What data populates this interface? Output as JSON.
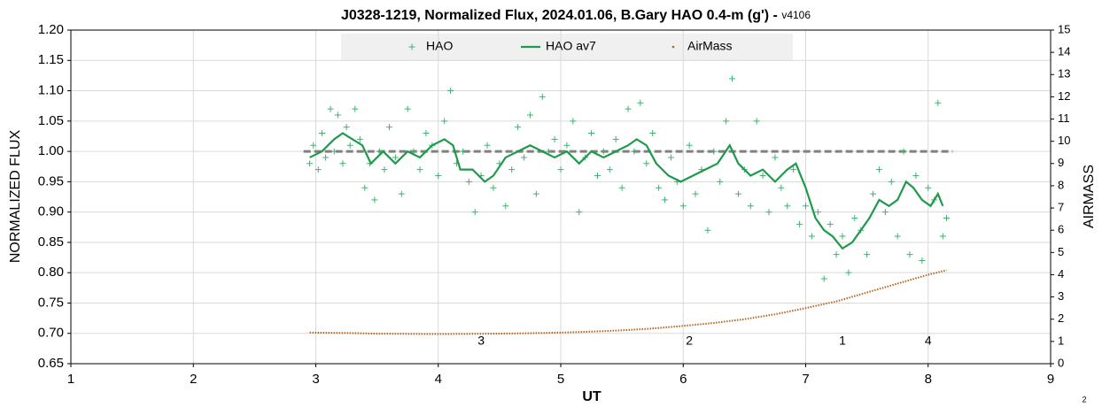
{
  "chart_data": {
    "type": "scatter",
    "title": "J0328-1219, Normalized Flux, 2024.01.06, B.Gary HAO 0.4-m (g') - ",
    "title_suffix": "v4106",
    "xlabel": "UT",
    "ylabel": "NORMALIZED FLUX",
    "y2label": "AIRMASS",
    "footnote": "2",
    "xlim": [
      1,
      9
    ],
    "xticks": [
      1,
      2,
      3,
      4,
      5,
      6,
      7,
      8,
      9
    ],
    "ylim": [
      0.65,
      1.2
    ],
    "yticks": [
      {
        "value": 0.65,
        "label": "0.65"
      },
      {
        "value": 0.7,
        "label": "0.70"
      },
      {
        "value": 0.75,
        "label": "0.75"
      },
      {
        "value": 0.8,
        "label": "0.80"
      },
      {
        "value": 0.85,
        "label": "0.85"
      },
      {
        "value": 0.9,
        "label": "0.90"
      },
      {
        "value": 0.95,
        "label": "0.95"
      },
      {
        "value": 1.0,
        "label": "1.00"
      },
      {
        "value": 1.05,
        "label": "1.05"
      },
      {
        "value": 1.1,
        "label": "1.10"
      },
      {
        "value": 1.15,
        "label": "1.15"
      },
      {
        "value": 1.2,
        "label": "1.20"
      }
    ],
    "y2lim": [
      0,
      15
    ],
    "y2ticks": [
      0,
      1,
      2,
      3,
      4,
      5,
      6,
      7,
      8,
      9,
      10,
      11,
      12,
      13,
      14,
      15
    ],
    "grid": true,
    "legend": "top",
    "reference": {
      "y": 1.0,
      "x": [
        2.9,
        8.2
      ],
      "color": "#808080"
    },
    "annotations": [
      "3",
      "2",
      "1",
      "4"
    ],
    "series": [
      {
        "name": "HAO",
        "color": "#3cb371",
        "marker": "plus",
        "x": [
          2.95,
          2.98,
          3.02,
          3.05,
          3.08,
          3.12,
          3.15,
          3.18,
          3.22,
          3.25,
          3.28,
          3.32,
          3.36,
          3.4,
          3.44,
          3.48,
          3.52,
          3.56,
          3.6,
          3.65,
          3.7,
          3.75,
          3.8,
          3.85,
          3.9,
          3.95,
          4.0,
          4.05,
          4.1,
          4.15,
          4.2,
          4.25,
          4.3,
          4.35,
          4.4,
          4.45,
          4.5,
          4.55,
          4.6,
          4.65,
          4.7,
          4.75,
          4.8,
          4.85,
          4.9,
          4.95,
          5.0,
          5.05,
          5.1,
          5.15,
          5.2,
          5.25,
          5.3,
          5.35,
          5.4,
          5.45,
          5.5,
          5.55,
          5.6,
          5.65,
          5.7,
          5.75,
          5.8,
          5.85,
          5.9,
          5.95,
          6.0,
          6.05,
          6.1,
          6.15,
          6.2,
          6.25,
          6.3,
          6.35,
          6.4,
          6.45,
          6.5,
          6.55,
          6.6,
          6.65,
          6.7,
          6.75,
          6.8,
          6.85,
          6.9,
          6.95,
          7.0,
          7.05,
          7.1,
          7.15,
          7.2,
          7.25,
          7.3,
          7.35,
          7.4,
          7.45,
          7.5,
          7.55,
          7.6,
          7.65,
          7.7,
          7.75,
          7.8,
          7.85,
          7.9,
          7.95,
          8.0,
          8.05,
          8.08,
          8.12,
          8.15
        ],
        "values": [
          0.98,
          1.01,
          0.97,
          1.03,
          0.99,
          1.07,
          1.0,
          1.06,
          0.98,
          1.04,
          1.01,
          1.07,
          1.02,
          0.94,
          0.98,
          0.92,
          1.0,
          0.97,
          1.04,
          0.99,
          0.93,
          1.07,
          1.0,
          0.97,
          1.03,
          1.01,
          0.96,
          1.05,
          1.1,
          0.98,
          1.0,
          0.95,
          0.9,
          0.96,
          1.01,
          0.94,
          0.98,
          0.91,
          0.97,
          1.04,
          0.99,
          1.06,
          0.93,
          1.09,
          1.0,
          1.02,
          0.97,
          1.01,
          1.05,
          0.9,
          0.99,
          1.03,
          0.96,
          1.0,
          0.97,
          1.02,
          0.94,
          1.07,
          1.0,
          1.08,
          0.98,
          1.03,
          0.94,
          0.92,
          0.99,
          0.95,
          0.91,
          1.01,
          0.93,
          0.97,
          0.87,
          1.0,
          0.95,
          1.05,
          1.12,
          0.93,
          0.97,
          0.91,
          1.05,
          0.96,
          0.9,
          0.99,
          0.94,
          0.91,
          0.97,
          0.88,
          0.91,
          0.86,
          0.9,
          0.79,
          0.88,
          0.83,
          0.86,
          0.8,
          0.89,
          0.87,
          0.83,
          0.93,
          0.97,
          0.9,
          0.95,
          0.86,
          1.0,
          0.83,
          0.96,
          0.82,
          0.94,
          0.92,
          1.08,
          0.86,
          0.89
        ]
      },
      {
        "name": "HAO av7",
        "color": "#1e9a4b",
        "marker": "line",
        "x": [
          2.95,
          3.05,
          3.15,
          3.22,
          3.3,
          3.38,
          3.45,
          3.55,
          3.65,
          3.75,
          3.85,
          3.95,
          4.05,
          4.12,
          4.18,
          4.28,
          4.38,
          4.45,
          4.55,
          4.65,
          4.75,
          4.85,
          4.95,
          5.05,
          5.15,
          5.25,
          5.35,
          5.45,
          5.55,
          5.62,
          5.7,
          5.78,
          5.88,
          5.98,
          6.08,
          6.18,
          6.28,
          6.38,
          6.45,
          6.55,
          6.65,
          6.75,
          6.85,
          6.92,
          7.0,
          7.08,
          7.15,
          7.22,
          7.3,
          7.38,
          7.45,
          7.52,
          7.6,
          7.68,
          7.75,
          7.82,
          7.88,
          7.95,
          8.02,
          8.08,
          8.12
        ],
        "values": [
          0.99,
          1.0,
          1.02,
          1.03,
          1.02,
          1.01,
          0.98,
          1.0,
          0.98,
          1.0,
          0.99,
          1.01,
          1.02,
          1.01,
          0.97,
          0.97,
          0.95,
          0.96,
          0.99,
          1.0,
          1.01,
          1.0,
          0.99,
          1.0,
          0.98,
          1.0,
          0.99,
          1.0,
          1.01,
          1.02,
          1.01,
          0.98,
          0.96,
          0.95,
          0.96,
          0.97,
          0.98,
          1.01,
          0.98,
          0.96,
          0.97,
          0.95,
          0.97,
          0.98,
          0.94,
          0.89,
          0.87,
          0.86,
          0.84,
          0.85,
          0.87,
          0.89,
          0.92,
          0.91,
          0.92,
          0.95,
          0.94,
          0.92,
          0.91,
          0.93,
          0.91
        ]
      },
      {
        "name": "AirMass",
        "color": "#b5651d",
        "marker": "dot",
        "axis": "y2",
        "x": [
          2.95,
          3.25,
          3.5,
          3.75,
          4.0,
          4.25,
          4.5,
          4.75,
          5.0,
          5.25,
          5.5,
          5.75,
          6.0,
          6.25,
          6.5,
          6.75,
          7.0,
          7.25,
          7.5,
          7.75,
          8.0,
          8.15
        ],
        "values": [
          1.4,
          1.38,
          1.35,
          1.34,
          1.33,
          1.34,
          1.35,
          1.37,
          1.4,
          1.44,
          1.5,
          1.58,
          1.7,
          1.83,
          2.0,
          2.22,
          2.5,
          2.8,
          3.2,
          3.6,
          4.0,
          4.2
        ]
      }
    ]
  }
}
